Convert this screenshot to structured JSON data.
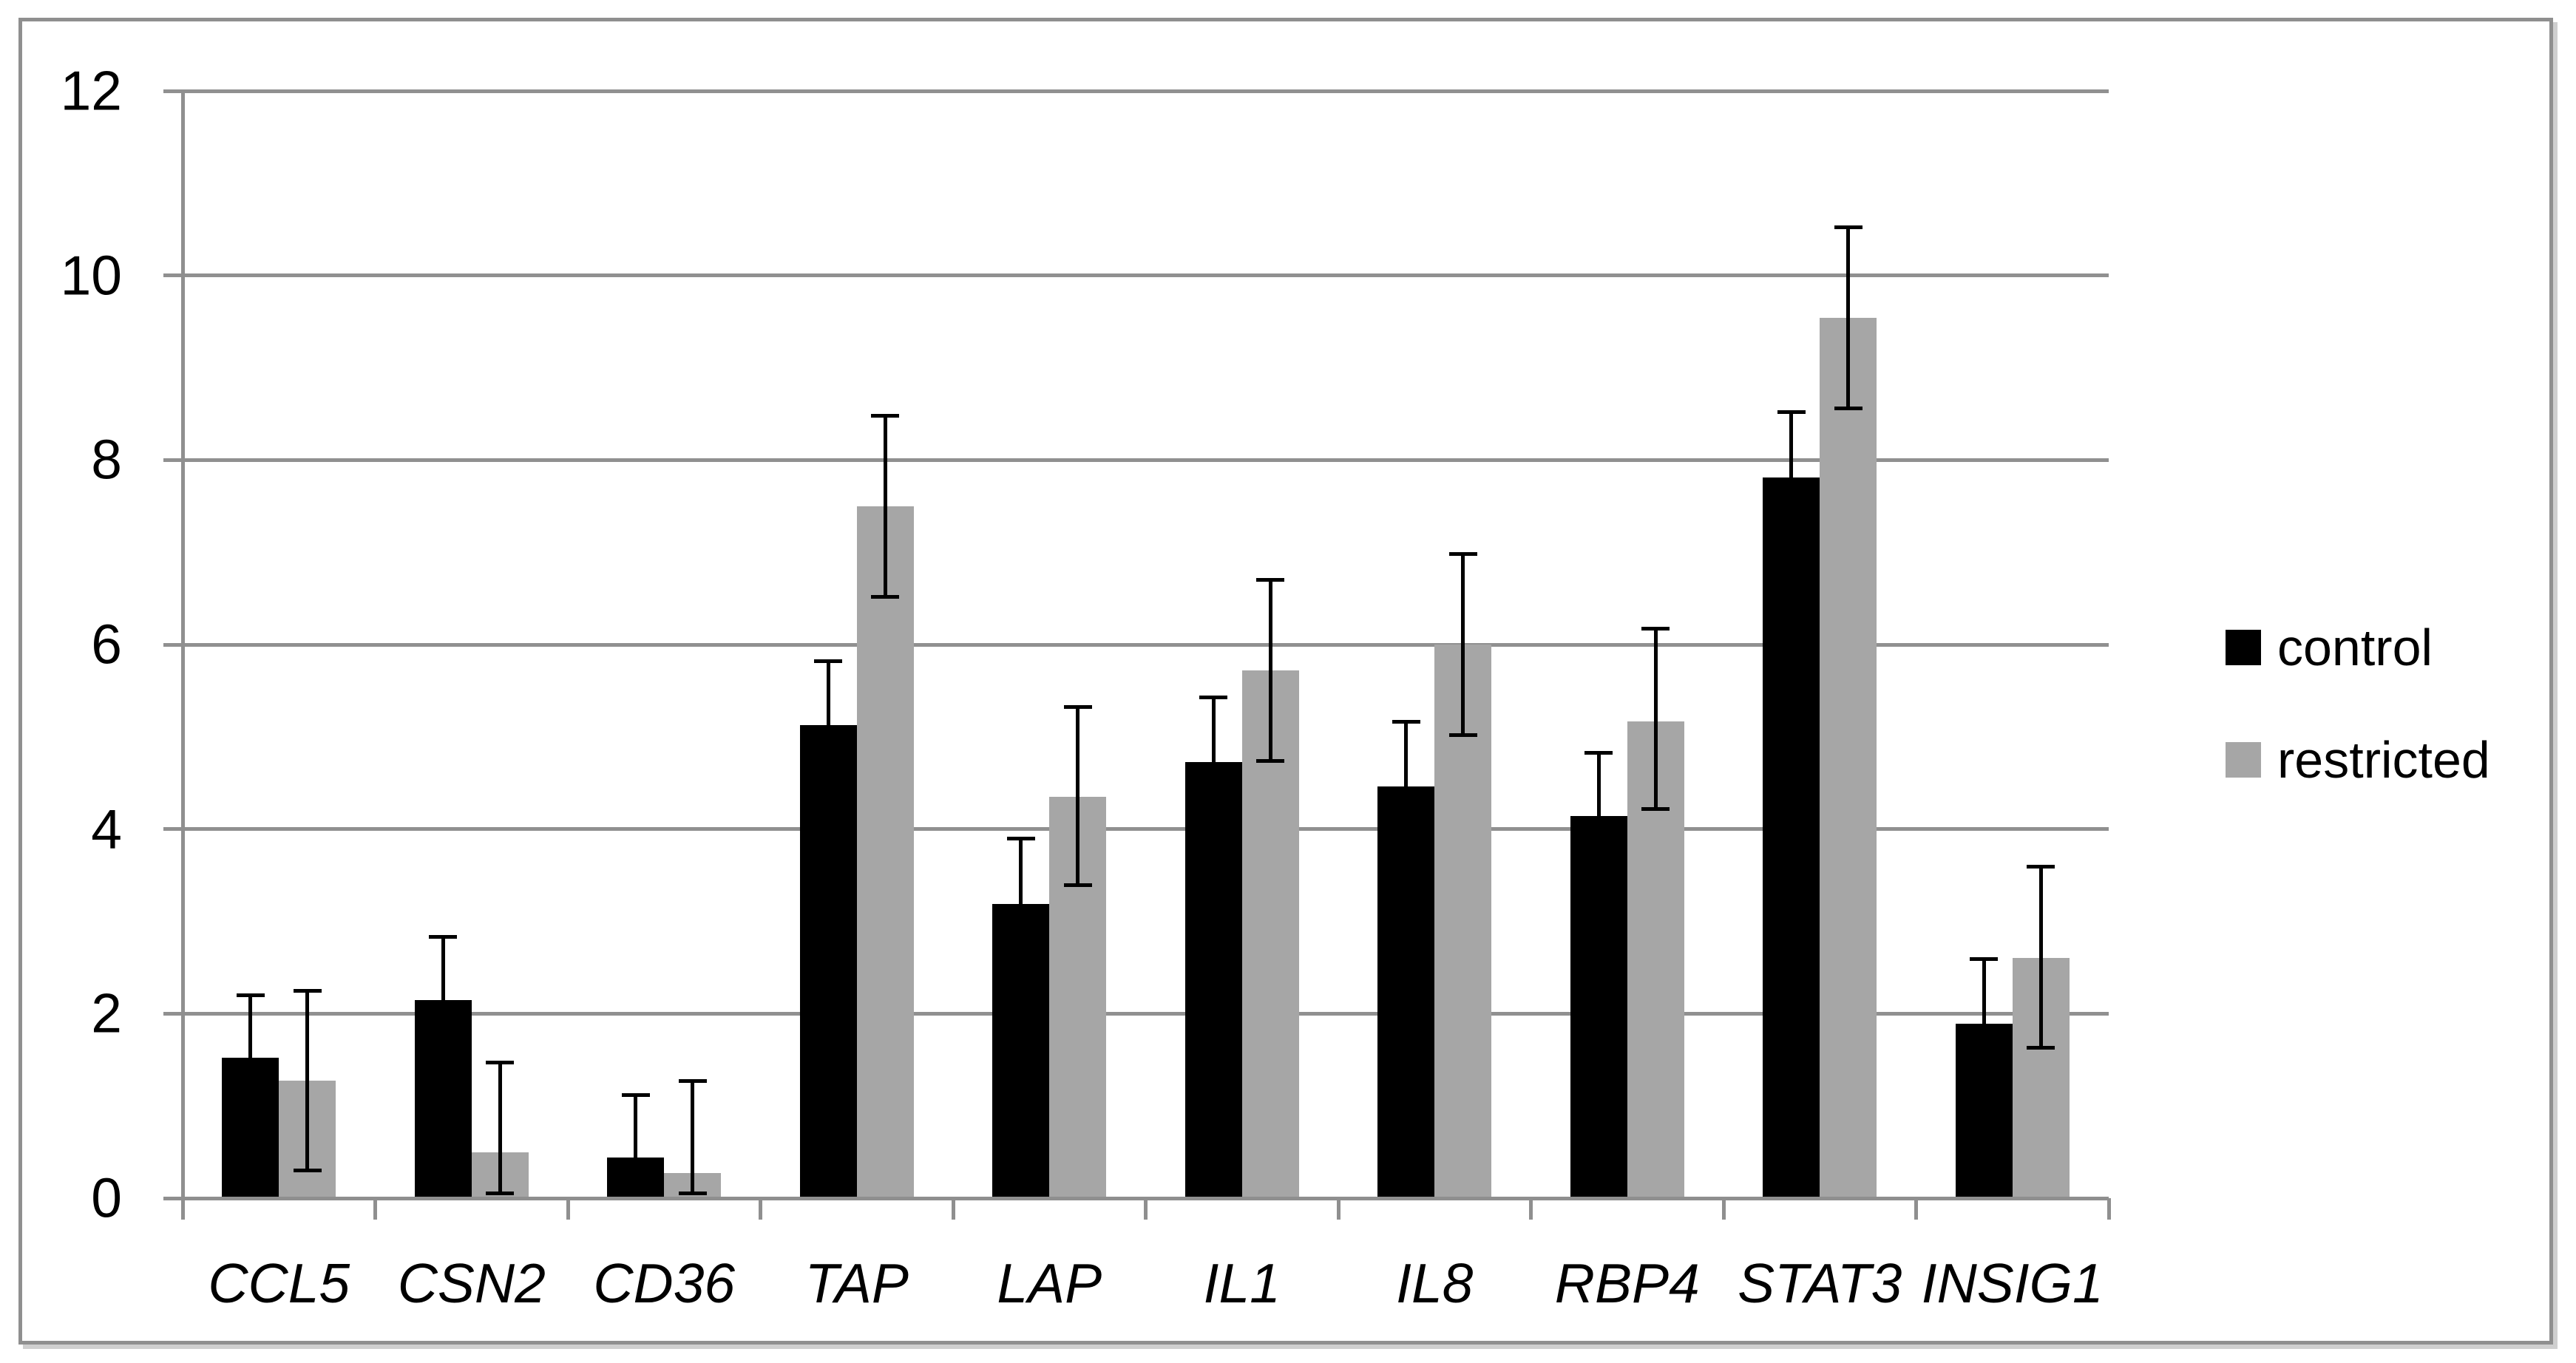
{
  "figure": {
    "background": "#ffffff",
    "border_color": "#8f8f8f",
    "shadow_color": "#cfcfcf"
  },
  "chart_data": {
    "type": "bar",
    "title": "",
    "xlabel": "",
    "ylabel": "",
    "categories": [
      "CCL5",
      "CSN2",
      "CD36",
      "TAP",
      "LAP",
      "IL1",
      "IL8",
      "RBP4",
      "STAT3",
      "INSIG1"
    ],
    "series": [
      {
        "name": "control",
        "color": "#000000",
        "values": [
          1.52,
          2.15,
          0.44,
          5.13,
          3.19,
          4.73,
          4.46,
          4.14,
          7.81,
          1.89
        ],
        "error_top": [
          2.2,
          2.83,
          1.12,
          5.82,
          3.9,
          5.43,
          5.16,
          4.83,
          8.52,
          2.59
        ],
        "error_bottom": [
          0.84,
          1.47,
          0.05,
          4.44,
          2.48,
          4.03,
          3.76,
          3.45,
          7.1,
          1.19
        ]
      },
      {
        "name": "restricted",
        "color": "#a6a6a6",
        "values": [
          1.27,
          0.5,
          0.27,
          7.5,
          4.35,
          5.72,
          6.0,
          5.17,
          9.54,
          2.6
        ],
        "error_top": [
          2.25,
          1.47,
          1.27,
          8.48,
          5.32,
          6.7,
          6.98,
          6.17,
          10.52,
          3.59
        ],
        "error_bottom": [
          0.3,
          0.05,
          0.05,
          6.52,
          3.39,
          4.74,
          5.02,
          4.22,
          8.56,
          1.63
        ]
      }
    ],
    "ylim": [
      0,
      12
    ],
    "yticks": [
      0,
      2,
      4,
      6,
      8,
      10,
      12
    ],
    "grid": true,
    "legend_position": "right",
    "axis_color": "#8f8f8f",
    "gridline_color": "#909090",
    "error_bar_color": "#000000"
  }
}
